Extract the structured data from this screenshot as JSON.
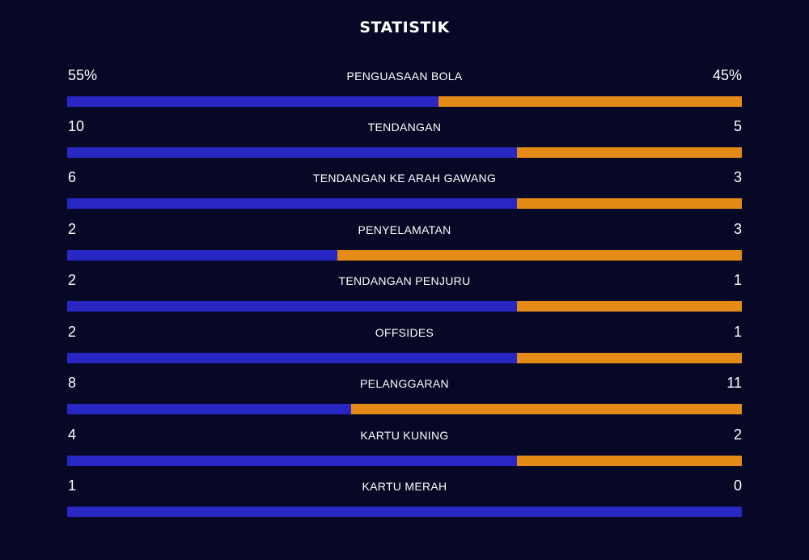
{
  "title": "STATISTIK",
  "colors": {
    "background": "#070826",
    "home": "#2927c3",
    "away": "#e38a17"
  },
  "stats": [
    {
      "label": "PENGUASAAN BOLA",
      "home": "55%",
      "away": "45%",
      "home_value": 55,
      "away_value": 45
    },
    {
      "label": "TENDANGAN",
      "home": "10",
      "away": "5",
      "home_value": 10,
      "away_value": 5
    },
    {
      "label": "TENDANGAN KE ARAH GAWANG",
      "home": "6",
      "away": "3",
      "home_value": 6,
      "away_value": 3
    },
    {
      "label": "PENYELAMATAN",
      "home": "2",
      "away": "3",
      "home_value": 2,
      "away_value": 3
    },
    {
      "label": "TENDANGAN PENJURU",
      "home": "2",
      "away": "1",
      "home_value": 2,
      "away_value": 1
    },
    {
      "label": "OFFSIDES",
      "home": "2",
      "away": "1",
      "home_value": 2,
      "away_value": 1
    },
    {
      "label": "PELANGGARAN",
      "home": "8",
      "away": "11",
      "home_value": 8,
      "away_value": 11
    },
    {
      "label": "KARTU KUNING",
      "home": "4",
      "away": "2",
      "home_value": 4,
      "away_value": 2
    },
    {
      "label": "KARTU MERAH",
      "home": "1",
      "away": "0",
      "home_value": 1,
      "away_value": 0
    }
  ]
}
